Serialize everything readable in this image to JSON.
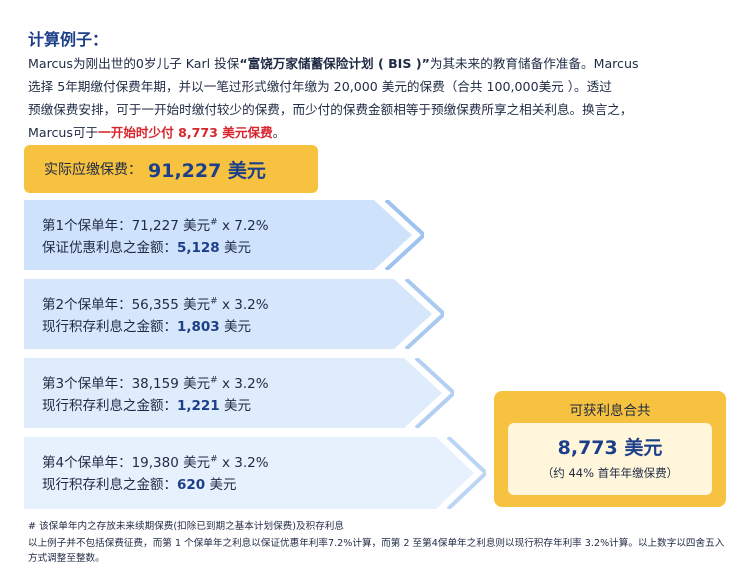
{
  "title": "计算例子：",
  "intro": {
    "p1": "Marcus为刚出世的0岁儿子 Karl 投保",
    "product": "“富饶万家储蓄保险计划 ( BIS )”",
    "p2": "为其未来的教育储备作准备。Marcus",
    "p3": "选择 5年期缴付保费年期，并以一笔过形式缴付年缴为 20,000 美元的保费（合共 100,000美元 ）。透过",
    "p4": "预缴保费安排，可于一开始时缴付较少的保费，而少付的保费金额相等于预缴保费所享之相关利息。换言之，",
    "p5": "Marcus可于",
    "highlight": "一开始时少付 8,773 美元保费",
    "p6": "。"
  },
  "actual_premium": {
    "label": "实际应缴保费：",
    "value": "91,227 美元"
  },
  "years": [
    {
      "line1_prefix": "第1个保单年：71,227 美元",
      "mark": "#",
      "line1_suffix": " x 7.2%",
      "line2_label": "保证优惠利息之金额：",
      "line2_value": "5,128",
      "line2_unit": " 美元",
      "fill": "#cfe2fb",
      "stroke": "#9fc3ef"
    },
    {
      "line1_prefix": "第2个保单年：56,355 美元",
      "mark": "#",
      "line1_suffix": " x 3.2%",
      "line2_label": "现行积存利息之金额：",
      "line2_value": "1,803",
      "line2_unit": " 美元",
      "fill": "#d7e7fb",
      "stroke": "#a9c9f0"
    },
    {
      "line1_prefix": "第3个保单年：38,159 美元",
      "mark": "#",
      "line1_suffix": " x 3.2%",
      "line2_label": "现行积存利息之金额：",
      "line2_value": "1,221",
      "line2_unit": " 美元",
      "fill": "#dfecfc",
      "stroke": "#b3cff2"
    },
    {
      "line1_prefix": "第4个保单年：19,380 美元",
      "mark": "#",
      "line1_suffix": " x 3.2%",
      "line2_label": "现行积存利息之金额：",
      "line2_value": "620",
      "line2_unit": " 美元",
      "fill": "#e7f1fd",
      "stroke": "#bdd5f4"
    }
  ],
  "interest_total": {
    "label": "可获利息合共",
    "amount": "8,773 美元",
    "note": "（约 44% 首年年缴保费）"
  },
  "footnote1": "# 该保单年内之存放未来续期保费(扣除已到期之基本计划保费)及积存利息",
  "footnote2": "以上例子并不包括保费征费，而第 1 个保单年之利息以保证优惠年利率7.2%计算，而第 2 至第4保单年之利息则以现行积存年利率 3.2%计算。以上数字以四舍五入方式调整至整数。"
}
